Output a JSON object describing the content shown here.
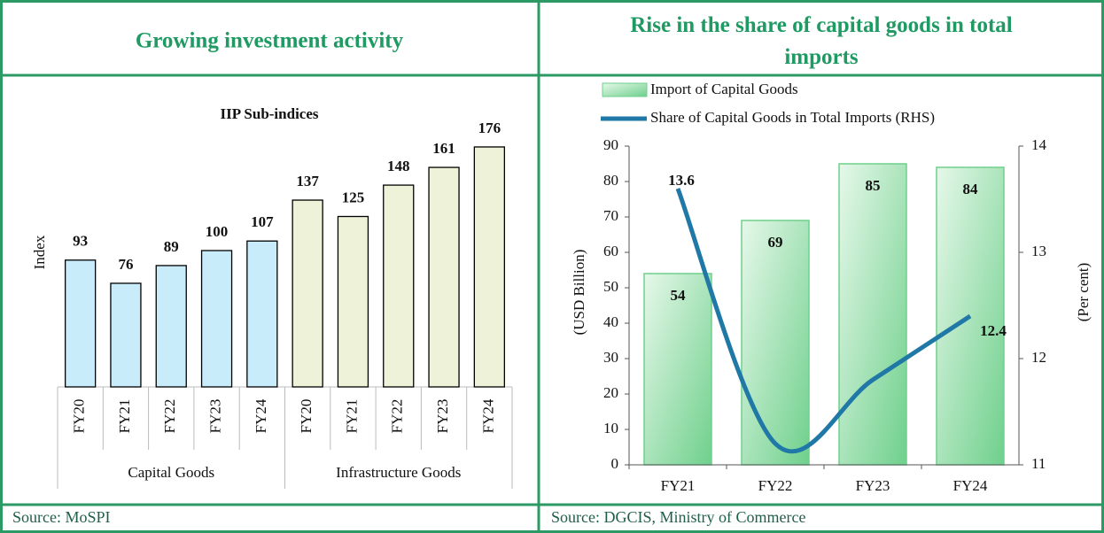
{
  "chart_data": [
    {
      "type": "grouped-bar",
      "heading": "Growing investment activity",
      "title": "IIP Sub-indices",
      "y_label": "Index",
      "source": "Source: MoSPI",
      "ylim": [
        0,
        200
      ],
      "groups": [
        {
          "name": "Capital Goods",
          "color": "#c9ecfb",
          "categories": [
            "FY20",
            "FY21",
            "FY22",
            "FY23",
            "FY24"
          ],
          "values": [
            93,
            76,
            89,
            100,
            107
          ]
        },
        {
          "name": "Infrastructure Goods",
          "color": "#eef2d8",
          "categories": [
            "FY20",
            "FY21",
            "FY22",
            "FY23",
            "FY24"
          ],
          "values": [
            137,
            125,
            148,
            161,
            176
          ]
        }
      ]
    },
    {
      "type": "bar-line",
      "title": "Rise in the share of capital goods in total imports",
      "y_label": "(USD Billion)",
      "y2_label": "(Per cent)",
      "source": "Source: DGCIS, Ministry of Commerce",
      "categories": [
        "FY21",
        "FY22",
        "FY23",
        "FY24"
      ],
      "ylim": [
        0,
        90
      ],
      "yticks": [
        0,
        10,
        20,
        30,
        40,
        50,
        60,
        70,
        80,
        90
      ],
      "y2lim": [
        11,
        14
      ],
      "y2ticks": [
        11,
        12,
        13,
        14
      ],
      "series": [
        {
          "name": "Import of Capital Goods",
          "type": "bar",
          "color": "#6fd08c",
          "values": [
            54,
            69,
            85,
            84
          ]
        },
        {
          "name": "Share of Capital Goods in Total Imports (RHS)",
          "type": "line",
          "axis": "y2",
          "color": "#1f78a6",
          "values": [
            13.6,
            11.2,
            11.8,
            12.4
          ],
          "value_labels": [
            "13.6",
            null,
            null,
            "12.4"
          ]
        }
      ]
    }
  ]
}
